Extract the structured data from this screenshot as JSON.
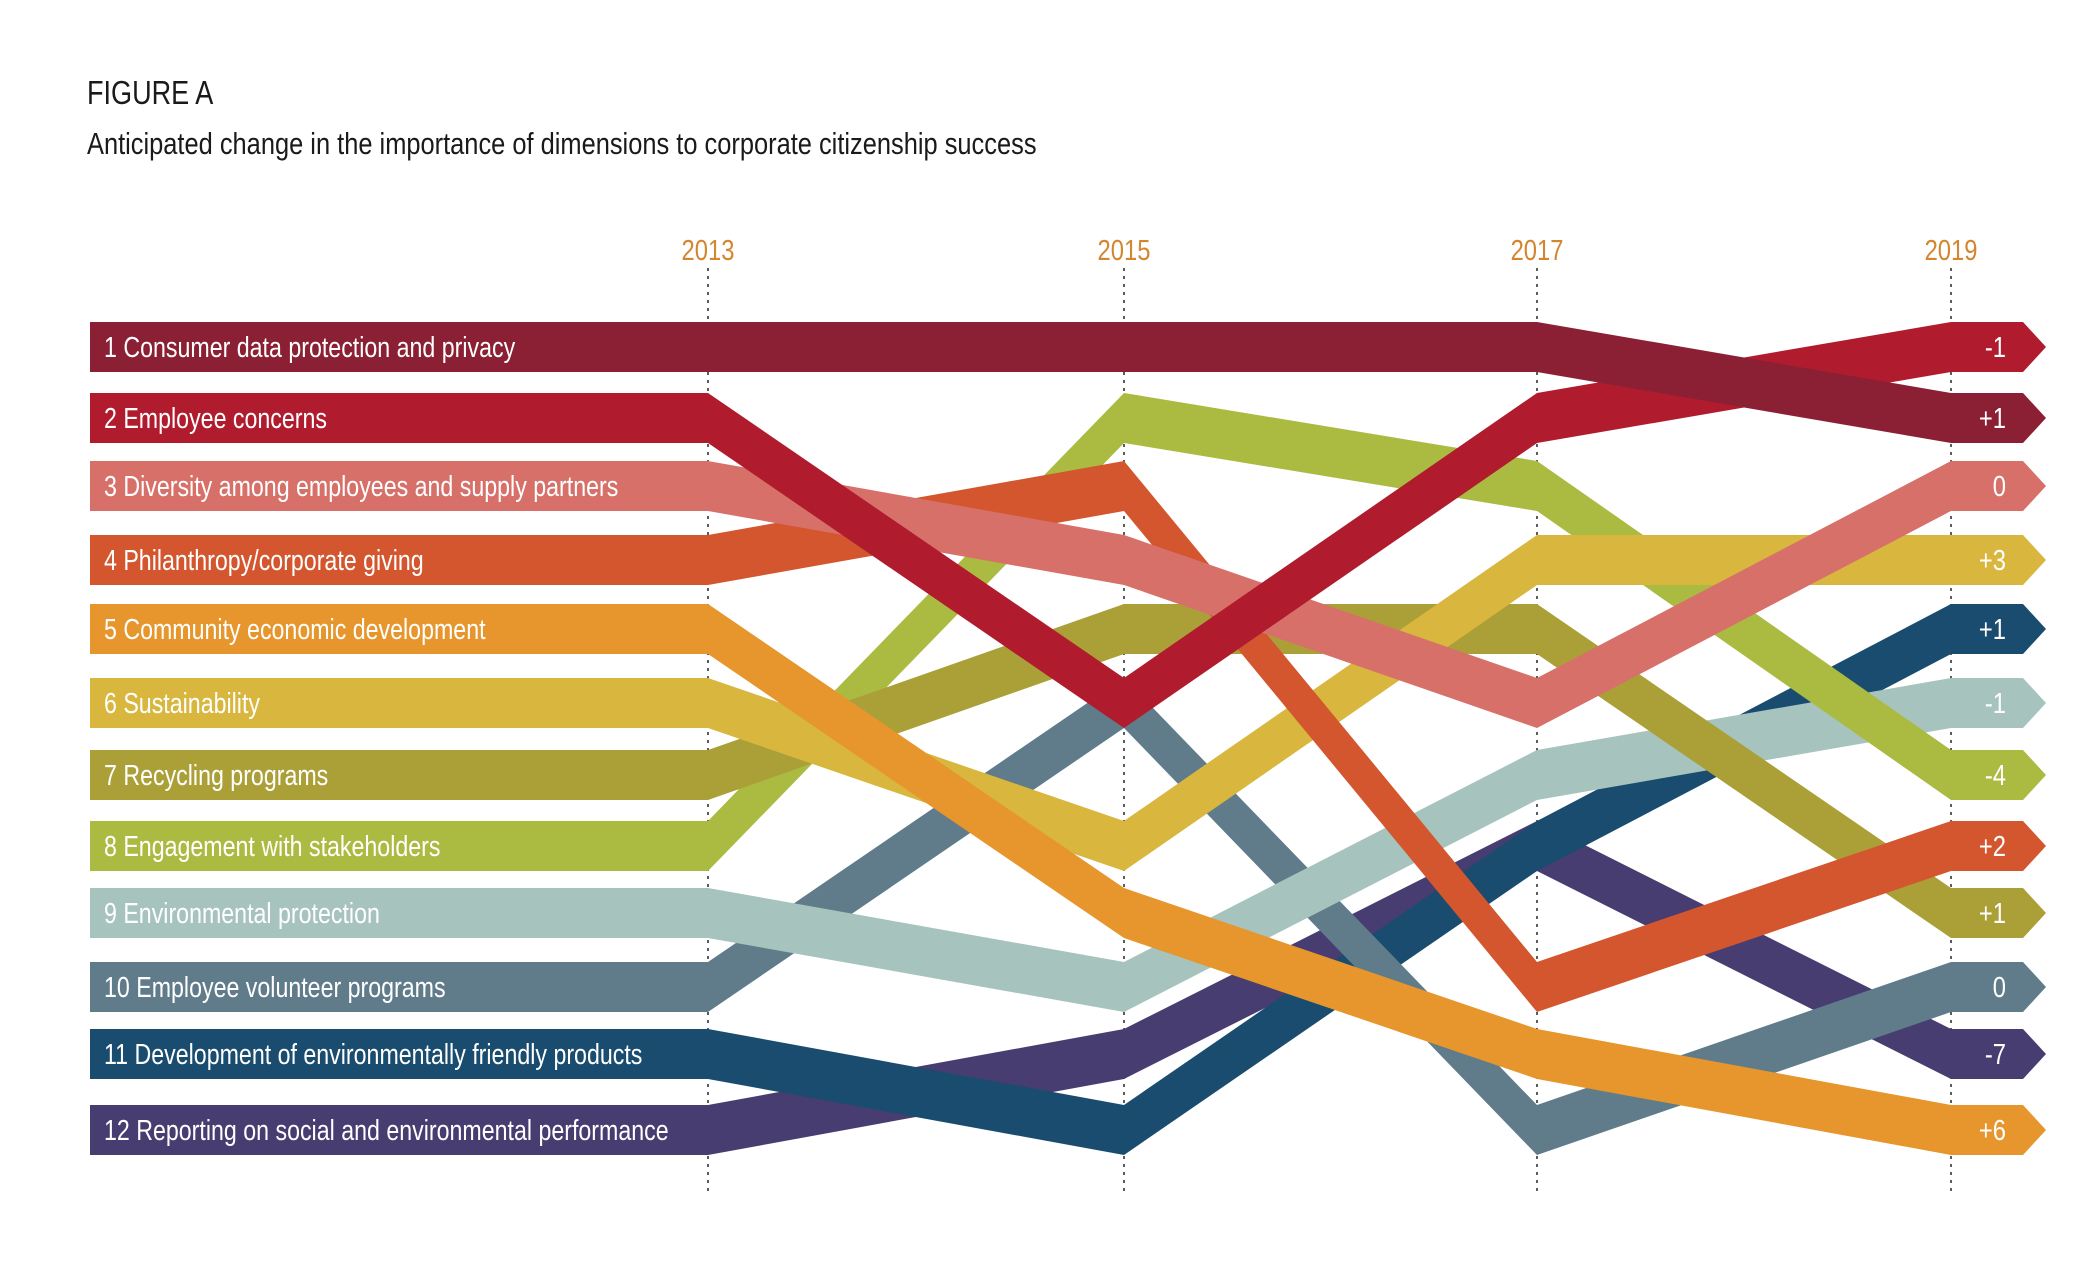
{
  "header": {
    "figure_label": "FIGURE A",
    "title": "Anticipated change in the importance of dimensions to corporate citizenship success"
  },
  "chart_data": {
    "type": "line",
    "subtype": "bump",
    "x": [
      "2013",
      "2015",
      "2017",
      "2019"
    ],
    "y_axis": "rank (1 = most important)",
    "ylim": [
      1,
      12
    ],
    "y_inverted": true,
    "grid": "vertical dotted at each year",
    "series": [
      {
        "name": "1 Consumer data protection and privacy",
        "color": "#8b2034",
        "ranks": [
          1,
          1,
          1,
          2
        ],
        "change": "+1"
      },
      {
        "name": "2 Employee concerns",
        "color": "#b01c2e",
        "ranks": [
          2,
          6,
          2,
          1
        ],
        "change": "-1"
      },
      {
        "name": "3  Diversity among employees and supply partners",
        "color": "#d8706a",
        "ranks": [
          3,
          4,
          6,
          3
        ],
        "change": "0"
      },
      {
        "name": "4  Philanthropy/corporate giving",
        "color": "#d4562e",
        "ranks": [
          4,
          3,
          10,
          8
        ],
        "change": "+2"
      },
      {
        "name": "5 Community economic development",
        "color": "#e6962c",
        "ranks": [
          5,
          9,
          11,
          12
        ],
        "change": "+6"
      },
      {
        "name": "6 Sustainability",
        "color": "#d9b63e",
        "ranks": [
          6,
          8,
          4,
          4
        ],
        "change": "+3"
      },
      {
        "name": "7 Recycling programs",
        "color": "#aba038",
        "ranks": [
          7,
          5,
          5,
          9
        ],
        "change": "+1"
      },
      {
        "name": "8 Engagement with stakeholders",
        "color": "#abbb42",
        "ranks": [
          8,
          2,
          3,
          7
        ],
        "change": "-4"
      },
      {
        "name": "9 Environmental protection",
        "color": "#a7c3bd",
        "ranks": [
          9,
          10,
          7,
          6
        ],
        "change": "-1"
      },
      {
        "name": "10 Employee volunteer programs",
        "color": "#607c8b",
        "ranks": [
          10,
          6,
          12,
          10
        ],
        "change": "0"
      },
      {
        "name": "11 Development of environmentally friendly products",
        "color": "#194c6e",
        "ranks": [
          11,
          12,
          8,
          5
        ],
        "change": "+1"
      },
      {
        "name": "12 Reporting on social and environmental performance",
        "color": "#473d70",
        "ranks": [
          12,
          11,
          8,
          11
        ],
        "change": "-7"
      }
    ],
    "end_labels": [
      "+1",
      "-1",
      "0",
      "+2",
      "+6",
      "+3",
      "+1",
      "-4",
      "-1",
      "0",
      "+1",
      "-7"
    ]
  },
  "colors": {
    "year_label": "#d4852e",
    "end_label_text": "#ffffff",
    "guide_line": "#333333"
  }
}
